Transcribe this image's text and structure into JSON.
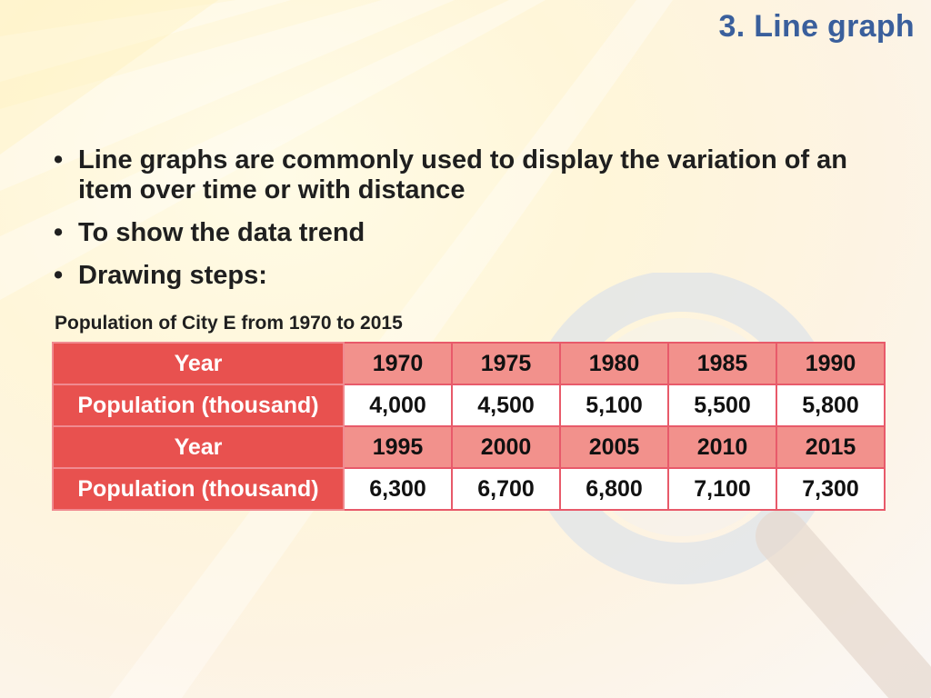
{
  "title": "3. Line graph",
  "bullets": [
    "Line graphs are commonly used to display the variation of an item over time or with distance",
    "To show the data trend",
    "Drawing steps:"
  ],
  "table": {
    "caption": "Population of City E from 1970 to 2015",
    "rows": [
      {
        "label": "Year",
        "values": [
          "1970",
          "1975",
          "1980",
          "1985",
          "1990"
        ]
      },
      {
        "label": "Population (thousand)",
        "values": [
          "4,000",
          "4,500",
          "5,100",
          "5,500",
          "5,800"
        ]
      },
      {
        "label": "Year",
        "values": [
          "1995",
          "2000",
          "2005",
          "2010",
          "2015"
        ]
      },
      {
        "label": "Population (thousand)",
        "values": [
          "6,300",
          "6,700",
          "6,800",
          "7,100",
          "7,300"
        ]
      }
    ]
  },
  "colors": {
    "title": "#3a5f9c",
    "header_cell": "#e8514f",
    "year_cell": "#f2918c",
    "border": "#e85a6a"
  },
  "icons": [
    "magnifier-watermark-icon"
  ]
}
